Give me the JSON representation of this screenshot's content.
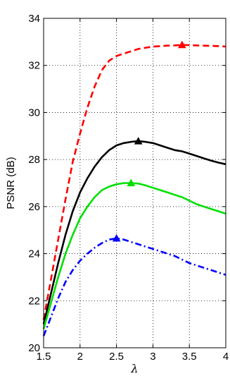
{
  "chart_data": {
    "type": "line",
    "title": "",
    "xlabel": "λ",
    "ylabel": "PSNR (dB)",
    "xlim": [
      1.5,
      4
    ],
    "ylim": [
      20,
      34
    ],
    "xticks": [
      1.5,
      2,
      2.5,
      3,
      3.5,
      4
    ],
    "xtick_labels": [
      "1.5",
      "2",
      "2.5",
      "3",
      "3.5",
      "4"
    ],
    "yticks": [
      20,
      22,
      24,
      26,
      28,
      30,
      32,
      34
    ],
    "ytick_labels": [
      "20",
      "22",
      "24",
      "26",
      "28",
      "30",
      "32",
      "34"
    ],
    "grid": true,
    "grid_style": "dotted",
    "legend": "none",
    "series": [
      {
        "color": "#ff0000",
        "dash": "dashed",
        "x": [
          1.5,
          1.6,
          1.7,
          1.8,
          1.9,
          2.0,
          2.1,
          2.2,
          2.3,
          2.4,
          2.5,
          2.6,
          2.7,
          2.8,
          2.9,
          3.0,
          3.1,
          3.2,
          3.3,
          3.4,
          3.5,
          3.6,
          3.7,
          3.8,
          3.9,
          4.0
        ],
        "y": [
          21.2,
          22.9,
          24.6,
          26.3,
          27.9,
          29.1,
          30.2,
          31.1,
          31.8,
          32.2,
          32.4,
          32.5,
          32.6,
          32.7,
          32.75,
          32.8,
          32.82,
          32.84,
          32.85,
          32.87,
          32.86,
          32.85,
          32.84,
          32.83,
          32.82,
          32.8
        ],
        "marker": {
          "x": 3.4,
          "y": 32.87
        }
      },
      {
        "color": "#000000",
        "dash": "solid",
        "x": [
          1.5,
          1.6,
          1.7,
          1.8,
          1.9,
          2.0,
          2.1,
          2.2,
          2.3,
          2.4,
          2.5,
          2.6,
          2.7,
          2.8,
          2.9,
          3.0,
          3.1,
          3.2,
          3.3,
          3.4,
          3.5,
          3.6,
          3.7,
          3.8,
          3.9,
          4.0
        ],
        "y": [
          21.0,
          22.3,
          23.6,
          24.8,
          25.8,
          26.6,
          27.2,
          27.7,
          28.1,
          28.4,
          28.6,
          28.7,
          28.75,
          28.78,
          28.75,
          28.7,
          28.6,
          28.5,
          28.4,
          28.35,
          28.25,
          28.15,
          28.05,
          27.95,
          27.87,
          27.8
        ],
        "marker": {
          "x": 2.8,
          "y": 28.78
        }
      },
      {
        "color": "#00e000",
        "dash": "solid",
        "x": [
          1.5,
          1.6,
          1.7,
          1.8,
          1.9,
          2.0,
          2.1,
          2.2,
          2.3,
          2.4,
          2.5,
          2.6,
          2.7,
          2.8,
          2.9,
          3.0,
          3.1,
          3.2,
          3.3,
          3.4,
          3.5,
          3.6,
          3.7,
          3.8,
          3.9,
          4.0
        ],
        "y": [
          20.8,
          21.9,
          23.0,
          24.0,
          24.8,
          25.5,
          26.0,
          26.4,
          26.7,
          26.85,
          26.95,
          27.0,
          27.0,
          26.98,
          26.9,
          26.8,
          26.7,
          26.6,
          26.5,
          26.4,
          26.25,
          26.1,
          26.0,
          25.9,
          25.8,
          25.7
        ],
        "marker": {
          "x": 2.7,
          "y": 27.0
        }
      },
      {
        "color": "#0000ff",
        "dash": "dashdot",
        "x": [
          1.5,
          1.6,
          1.7,
          1.8,
          1.9,
          2.0,
          2.1,
          2.2,
          2.3,
          2.4,
          2.5,
          2.6,
          2.7,
          2.8,
          2.9,
          3.0,
          3.1,
          3.2,
          3.3,
          3.4,
          3.5,
          3.6,
          3.7,
          3.8,
          3.9,
          4.0
        ],
        "y": [
          20.5,
          21.3,
          22.1,
          22.8,
          23.3,
          23.7,
          24.0,
          24.25,
          24.45,
          24.6,
          24.65,
          24.6,
          24.5,
          24.4,
          24.3,
          24.2,
          24.1,
          24.0,
          23.9,
          23.75,
          23.6,
          23.5,
          23.4,
          23.3,
          23.2,
          23.1
        ],
        "marker": {
          "x": 2.5,
          "y": 24.65
        }
      }
    ]
  }
}
